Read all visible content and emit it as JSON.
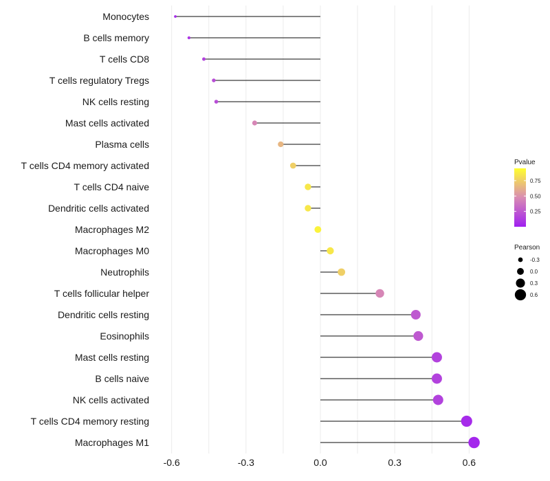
{
  "chart_data": {
    "type": "lollipop",
    "categories": [
      "Monocytes",
      "B cells memory",
      "T cells CD8",
      "T cells regulatory  Tregs",
      "NK cells resting",
      "Mast cells activated",
      "Plasma cells",
      "T cells CD4 memory activated",
      "T cells CD4 naive",
      "Dendritic cells activated",
      "Macrophages M2",
      "Macrophages M0",
      "Neutrophils",
      "T cells follicular helper",
      "Dendritic cells resting",
      "Eosinophils",
      "Mast cells resting",
      "B cells naive",
      "NK cells activated",
      "T cells CD4 memory resting",
      "Macrophages M1"
    ],
    "pearson": [
      -0.585,
      -0.53,
      -0.47,
      -0.43,
      -0.42,
      -0.265,
      -0.16,
      -0.11,
      -0.05,
      -0.05,
      -0.01,
      0.04,
      0.085,
      0.24,
      0.385,
      0.395,
      0.47,
      0.47,
      0.475,
      0.59,
      0.62
    ],
    "pvalue": [
      0.05,
      0.1,
      0.15,
      0.2,
      0.2,
      0.45,
      0.65,
      0.75,
      0.85,
      0.85,
      0.9,
      0.85,
      0.75,
      0.45,
      0.25,
      0.25,
      0.15,
      0.15,
      0.15,
      0.05,
      0.03
    ],
    "xlim": [
      -0.66,
      0.71
    ],
    "x_ticks": [
      -0.6,
      -0.3,
      0.0,
      0.3,
      0.6
    ],
    "x_tick_labels": [
      "-0.6",
      "-0.3",
      "0.0",
      "0.3",
      "0.6"
    ],
    "xlabel": "",
    "ylabel": "",
    "color_legend": {
      "title": "Pvalue",
      "ticks": [
        0.25,
        0.5,
        0.75
      ],
      "tick_labels": [
        "0.25",
        "0.50",
        "0.75"
      ],
      "range": [
        0.0,
        0.95
      ],
      "low_color": "#a020f0",
      "mid_color": "#d98cb3",
      "high_color": "#ffff2e"
    },
    "size_legend": {
      "title": "Pearson",
      "values": [
        -0.3,
        0.0,
        0.3,
        0.6
      ],
      "labels": [
        "-0.3",
        "0.0",
        "0.3",
        "0.6"
      ]
    },
    "colors": {
      "segment": "#3a3a3a",
      "grid": "#ebebeb"
    }
  }
}
